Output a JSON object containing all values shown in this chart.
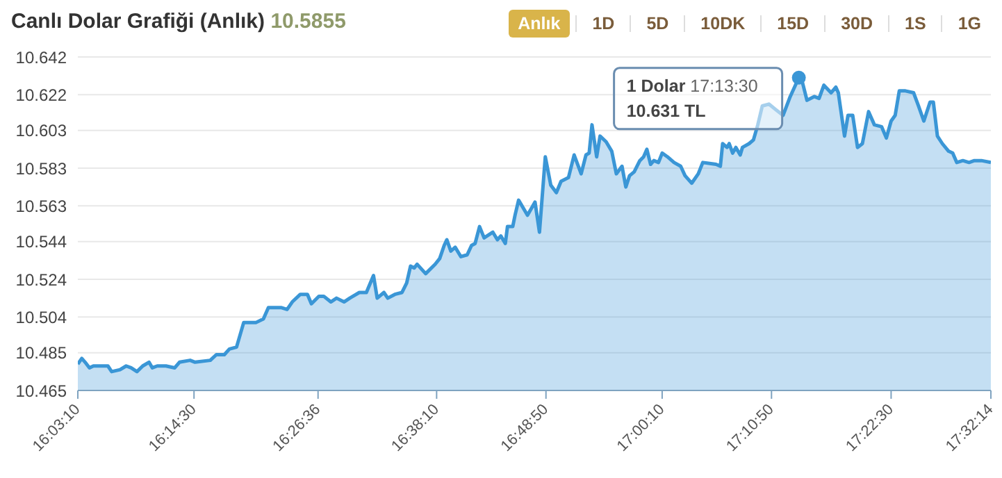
{
  "chart_data": {
    "type": "area",
    "title": "Canlı Dolar Grafiği (Anlık)",
    "subtitle": "10.5855",
    "annotations": [
      "Anlık",
      "1D",
      "5D",
      "10DK",
      "15D",
      "30D",
      "1S",
      "1G",
      {
        "text": "1 Dolar 17:13:30\n10.631 TL",
        "x": 17.225,
        "y": 10.631
      }
    ],
    "series": [
      {
        "color": "#3a96d6",
        "x": [
          16.0528,
          16.0592,
          16.0646,
          16.0717,
          16.0781,
          16.0899,
          16.1017,
          16.1078,
          16.1213,
          16.1314,
          16.1394,
          16.1489,
          16.1583,
          16.1685,
          16.1739,
          16.1819,
          16.1961,
          16.2103,
          16.2181,
          16.2354,
          16.2434,
          16.2681,
          16.2779,
          16.291,
          16.2992,
          16.3108,
          16.3224,
          16.3421,
          16.3545,
          16.3626,
          16.3831,
          16.393,
          16.4014,
          16.4145,
          16.4261,
          16.4325,
          16.4447,
          16.4526,
          16.4641,
          16.4734,
          16.4856,
          16.4949,
          16.5104,
          16.5219,
          16.5335,
          16.5395,
          16.5504,
          16.5567,
          16.5682,
          16.5798,
          16.5874,
          16.5937,
          16.5997,
          16.6044,
          16.6183,
          16.6338,
          16.6411,
          16.6484,
          16.6527,
          16.6592,
          16.6663,
          16.6756,
          16.6858,
          16.6929,
          16.6987,
          16.7059,
          16.7133,
          16.7275,
          16.7349,
          16.7405,
          16.7478,
          16.7513,
          16.7599,
          16.7636,
          16.7694,
          16.7838,
          16.7961,
          16.8033,
          16.8128,
          16.8217,
          16.8308,
          16.8384,
          16.8505,
          16.8597,
          16.8711,
          16.8789,
          16.8841,
          16.8887,
          16.8963,
          16.9018,
          16.9116,
          16.9208,
          16.9283,
          16.9375,
          16.9437,
          16.9498,
          16.9573,
          16.9665,
          16.9726,
          16.9779,
          16.984,
          16.9893,
          16.9968,
          17.0028,
          17.0114,
          17.0221,
          17.0329,
          17.04,
          17.0508,
          17.0615,
          17.0688,
          17.0903,
          17.0974,
          17.1011,
          17.1082,
          17.1118,
          17.1174,
          17.1226,
          17.1297,
          17.1333,
          17.1441,
          17.1512,
          17.1583,
          17.1656,
          17.1763,
          17.1876,
          17.1993,
          17.211,
          17.225,
          17.2305,
          17.2382,
          17.25,
          17.2579,
          17.2657,
          17.2774,
          17.2852,
          17.2892,
          17.2993,
          17.3049,
          17.3126,
          17.3204,
          17.3283,
          17.3384,
          17.3478,
          17.3595,
          17.3673,
          17.375,
          17.3816,
          17.3883,
          17.3983,
          17.4116,
          17.4196,
          17.4282,
          17.4383,
          17.4437,
          17.4503,
          17.4583,
          17.4684,
          17.4751,
          17.4817,
          17.4917,
          17.5017,
          17.5104,
          17.5218,
          17.5372
        ],
        "values": [
          10.479,
          10.482,
          10.48,
          10.477,
          10.478,
          10.478,
          10.478,
          10.475,
          10.476,
          10.478,
          10.477,
          10.475,
          10.478,
          10.48,
          10.477,
          10.478,
          10.478,
          10.477,
          10.48,
          10.481,
          10.48,
          10.481,
          10.484,
          10.484,
          10.487,
          10.488,
          10.501,
          10.501,
          10.503,
          10.509,
          10.509,
          10.508,
          10.512,
          10.516,
          10.516,
          10.511,
          10.515,
          10.515,
          10.512,
          10.514,
          10.512,
          10.514,
          10.517,
          10.517,
          10.526,
          10.514,
          10.517,
          10.514,
          10.516,
          10.517,
          10.522,
          10.531,
          10.53,
          10.532,
          10.527,
          10.532,
          10.535,
          10.542,
          10.545,
          10.539,
          10.541,
          10.536,
          10.537,
          10.542,
          10.543,
          10.552,
          10.546,
          10.549,
          10.545,
          10.547,
          10.543,
          10.552,
          10.552,
          10.558,
          10.566,
          10.558,
          10.565,
          10.549,
          10.589,
          10.574,
          10.57,
          10.576,
          10.578,
          10.59,
          10.58,
          10.59,
          10.591,
          10.606,
          10.589,
          10.6,
          10.597,
          10.592,
          10.58,
          10.584,
          10.573,
          10.579,
          10.581,
          10.587,
          10.589,
          10.593,
          10.585,
          10.587,
          10.586,
          10.591,
          10.589,
          10.586,
          10.584,
          10.579,
          10.575,
          10.58,
          10.586,
          10.585,
          10.584,
          10.596,
          10.594,
          10.596,
          10.591,
          10.594,
          10.59,
          10.594,
          10.596,
          10.598,
          10.606,
          10.616,
          10.617,
          10.614,
          10.611,
          10.621,
          10.631,
          10.629,
          10.619,
          10.621,
          10.62,
          10.627,
          10.623,
          10.626,
          10.623,
          10.6,
          10.611,
          10.611,
          10.594,
          10.596,
          10.613,
          10.606,
          10.605,
          10.599,
          10.608,
          10.611,
          10.624,
          10.624,
          10.623,
          10.616,
          10.608,
          10.618,
          10.618,
          10.6,
          10.596,
          10.592,
          10.591,
          10.586,
          10.587,
          10.586,
          10.587,
          10.587,
          10.586
        ]
      }
    ],
    "xlim": [
      16.05278,
      17.53722
    ],
    "xticks": [
      {
        "value": 16.05278,
        "label": "16:03:10"
      },
      {
        "value": 16.24167,
        "label": "16:14:30"
      },
      {
        "value": 16.44333,
        "label": "16:26:36"
      },
      {
        "value": 16.63611,
        "label": "16:38:10"
      },
      {
        "value": 16.81389,
        "label": "16:48:50"
      },
      {
        "value": 17.00278,
        "label": "17:00:10"
      },
      {
        "value": 17.18056,
        "label": "17:10:50"
      },
      {
        "value": 17.375,
        "label": "17:22:30"
      },
      {
        "value": 17.53722,
        "label": "17:32:14"
      }
    ],
    "ylim": [
      10.465,
      10.642
    ],
    "yticks": [
      10.465,
      10.485,
      10.504,
      10.524,
      10.544,
      10.563,
      10.583,
      10.603,
      10.622,
      10.642
    ],
    "grid": "y",
    "legend": false,
    "marker": "none",
    "line_style": "solid"
  }
}
